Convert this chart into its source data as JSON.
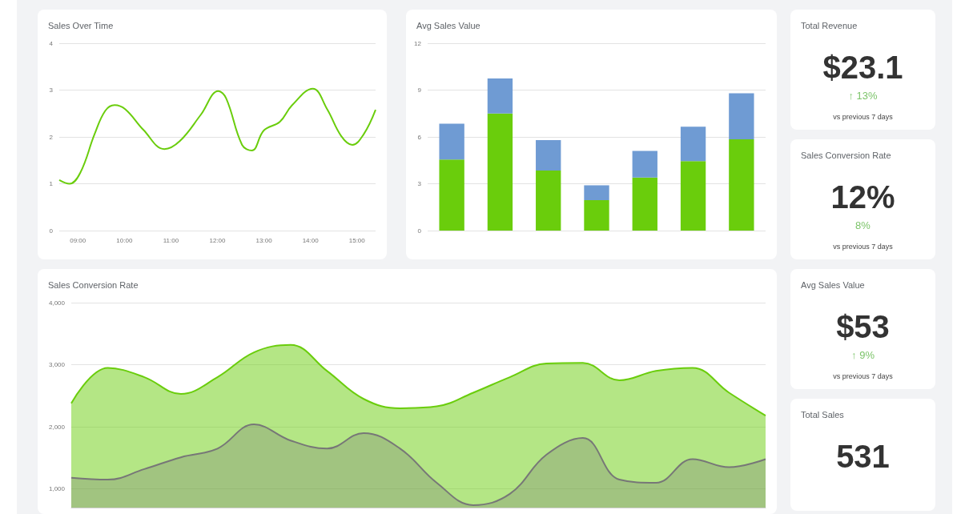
{
  "chart_data": [
    {
      "type": "line",
      "title": "Sales Over Time",
      "grid": "y",
      "x": [
        8.6,
        8.82,
        9.05,
        9.36,
        9.59,
        9.79,
        10.02,
        10.41,
        10.86,
        11.19,
        11.64,
        12.02,
        12.19,
        12.53,
        12.74,
        13.0,
        13.34,
        13.6,
        14.05,
        14.36,
        14.66,
        14.9,
        15.14,
        15.4
      ],
      "series": [
        {
          "color": "#6acd0c",
          "values": [
            1.08,
            1.0,
            1.23,
            2.06,
            2.56,
            2.68,
            2.59,
            2.15,
            1.74,
            1.91,
            2.47,
            2.98,
            2.82,
            1.83,
            1.71,
            2.14,
            2.32,
            2.67,
            3.03,
            2.59,
            2.02,
            1.83,
            2.05,
            2.58
          ]
        }
      ],
      "xlim": [
        8.6,
        15.4
      ],
      "xticks": [
        {
          "value": 9,
          "label": "09:00"
        },
        {
          "value": 10,
          "label": "10:00"
        },
        {
          "value": 11,
          "label": "11:00"
        },
        {
          "value": 12,
          "label": "12:00"
        },
        {
          "value": 13,
          "label": "13:00"
        },
        {
          "value": 14,
          "label": "14:00"
        },
        {
          "value": 15,
          "label": "15:00"
        }
      ],
      "ylim": [
        0,
        4
      ],
      "yticks": [
        0,
        1,
        2,
        3,
        4
      ]
    },
    {
      "type": "bar",
      "title": "Avg Sales Value",
      "grid": "y",
      "stacked": true,
      "categories": [
        null,
        null,
        null,
        null,
        null,
        null,
        null
      ],
      "series": [
        {
          "color": "#6acd0c",
          "values": [
            4.55,
            7.5,
            3.85,
            1.95,
            3.4,
            4.45,
            5.85
          ]
        },
        {
          "color": "#6f9bd3",
          "values": [
            2.3,
            2.25,
            1.95,
            0.95,
            1.7,
            2.2,
            2.95
          ]
        }
      ],
      "ylim": [
        0,
        12
      ],
      "yticks": [
        0,
        3,
        6,
        9,
        12
      ]
    },
    {
      "type": "other",
      "title": "Total Revenue",
      "annotations": [
        "$23.1",
        "↑ 13%",
        "vs previous 7 days"
      ]
    },
    {
      "type": "other",
      "title": "Sales Conversion Rate",
      "annotations": [
        "12%",
        "8%",
        "vs previous 7 days"
      ]
    },
    {
      "type": "area",
      "title": "Sales Conversion Rate",
      "grid": "y",
      "categories": [
        null,
        null,
        null,
        null,
        null,
        null,
        null,
        null,
        null,
        null,
        null,
        null,
        null,
        null,
        null,
        null,
        null,
        null,
        null,
        null
      ],
      "series": [
        {
          "color": "#6acd0c",
          "values": [
            2380,
            2950,
            2800,
            2530,
            2800,
            3200,
            3320,
            2900,
            2450,
            2300,
            2330,
            2550,
            2800,
            3020,
            3030,
            2750,
            2900,
            2950,
            2550,
            2180
          ]
        },
        {
          "color": "#777777",
          "values": [
            1180,
            1150,
            1320,
            1510,
            1650,
            2040,
            1780,
            1650,
            1900,
            1650,
            1100,
            740,
            920,
            1550,
            1820,
            1150,
            1100,
            1480,
            1350,
            1480
          ]
        }
      ],
      "ylim": [
        700,
        4000
      ],
      "yticks": [
        {
          "value": 1000,
          "label": "1,000"
        },
        {
          "value": 2000,
          "label": "2,000"
        },
        {
          "value": 3000,
          "label": "3,000"
        },
        {
          "value": 4000,
          "label": "4,000"
        }
      ]
    },
    {
      "type": "other",
      "title": "Avg Sales Value",
      "annotations": [
        "$53",
        "↑ 9%",
        "vs previous 7 days"
      ]
    },
    {
      "type": "other",
      "title": "Total Sales",
      "annotations": [
        "531"
      ]
    }
  ]
}
